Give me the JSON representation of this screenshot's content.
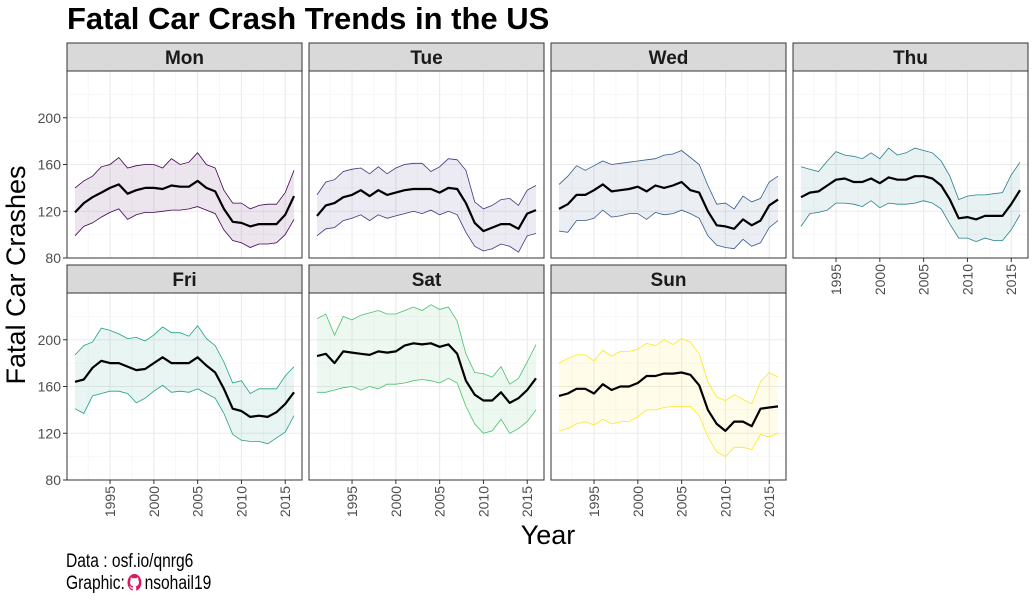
{
  "title": "Fatal Car Crash Trends in the US",
  "caption": {
    "data_label": "Data : ",
    "data_value": "osf.io/qnrg6",
    "graphic_label": "Graphic:",
    "graphic_value": "nsohail19",
    "github_icon_color": "#d81b60"
  },
  "chart_data": {
    "type": "area",
    "xlabel": "Year",
    "ylabel": "Fatal Car Crashes",
    "xlim": [
      1991,
      2016
    ],
    "ylim": [
      80,
      240
    ],
    "x_ticks": [
      1995,
      2000,
      2005,
      2010,
      2015
    ],
    "y_ticks": [
      80,
      120,
      160,
      200
    ],
    "grid": true,
    "legend": "none",
    "x": [
      1991,
      1992,
      1993,
      1994,
      1995,
      1996,
      1997,
      1998,
      1999,
      2000,
      2001,
      2002,
      2003,
      2004,
      2005,
      2006,
      2007,
      2008,
      2009,
      2010,
      2011,
      2012,
      2013,
      2014,
      2015,
      2016
    ],
    "panels": [
      {
        "day": "Mon",
        "color": "#440154",
        "mean": [
          119,
          127,
          132,
          136,
          140,
          143,
          135,
          138,
          140,
          140,
          139,
          142,
          141,
          141,
          146,
          140,
          137,
          122,
          111,
          110,
          107,
          109,
          109,
          109,
          117,
          133
        ],
        "upper": [
          140,
          146,
          150,
          158,
          160,
          166,
          157,
          159,
          160,
          160,
          157,
          165,
          160,
          162,
          170,
          160,
          157,
          138,
          127,
          127,
          122,
          125,
          126,
          126,
          136,
          155
        ],
        "lower": [
          99,
          107,
          110,
          115,
          119,
          122,
          113,
          117,
          119,
          119,
          120,
          121,
          121,
          122,
          124,
          121,
          118,
          104,
          95,
          93,
          89,
          92,
          92,
          93,
          100,
          113
        ]
      },
      {
        "day": "Tue",
        "color": "#46327e",
        "mean": [
          116,
          125,
          127,
          132,
          134,
          138,
          133,
          138,
          134,
          136,
          138,
          139,
          139,
          139,
          136,
          140,
          139,
          127,
          110,
          103,
          106,
          109,
          109,
          105,
          118,
          121
        ],
        "upper": [
          134,
          145,
          147,
          154,
          156,
          157,
          152,
          158,
          152,
          157,
          160,
          161,
          161,
          154,
          158,
          165,
          164,
          155,
          128,
          122,
          125,
          130,
          131,
          125,
          138,
          142
        ],
        "lower": [
          99,
          105,
          106,
          112,
          114,
          117,
          112,
          117,
          114,
          116,
          118,
          120,
          118,
          121,
          117,
          120,
          117,
          102,
          90,
          86,
          88,
          92,
          90,
          85,
          99,
          101
        ]
      },
      {
        "day": "Wed",
        "color": "#365c8d",
        "mean": [
          122,
          126,
          134,
          134,
          138,
          143,
          137,
          138,
          139,
          141,
          137,
          142,
          140,
          142,
          145,
          138,
          136,
          120,
          108,
          107,
          105,
          113,
          108,
          112,
          125,
          130
        ],
        "upper": [
          143,
          150,
          159,
          155,
          159,
          163,
          160,
          161,
          162,
          163,
          164,
          165,
          168,
          169,
          172,
          166,
          160,
          142,
          126,
          127,
          122,
          133,
          128,
          131,
          145,
          150
        ],
        "lower": [
          103,
          102,
          112,
          112,
          114,
          121,
          115,
          116,
          118,
          118,
          113,
          119,
          117,
          118,
          121,
          118,
          114,
          99,
          91,
          89,
          88,
          96,
          90,
          93,
          106,
          112
        ]
      },
      {
        "day": "Thu",
        "color": "#277f8e",
        "mean": [
          132,
          136,
          137,
          142,
          147,
          148,
          145,
          145,
          148,
          144,
          149,
          147,
          147,
          150,
          150,
          148,
          142,
          130,
          114,
          115,
          113,
          116,
          116,
          116,
          126,
          138
        ],
        "upper": [
          158,
          156,
          154,
          163,
          171,
          168,
          167,
          165,
          170,
          165,
          174,
          168,
          170,
          174,
          172,
          170,
          163,
          150,
          130,
          133,
          134,
          134,
          135,
          136,
          151,
          162
        ],
        "lower": [
          107,
          118,
          119,
          121,
          127,
          127,
          126,
          124,
          129,
          123,
          127,
          126,
          126,
          127,
          129,
          127,
          122,
          109,
          97,
          97,
          94,
          97,
          95,
          95,
          104,
          117
        ]
      },
      {
        "day": "Fri",
        "color": "#1fa187",
        "mean": [
          164,
          166,
          176,
          182,
          180,
          180,
          177,
          174,
          175,
          180,
          185,
          180,
          180,
          180,
          185,
          178,
          172,
          158,
          141,
          139,
          134,
          135,
          134,
          138,
          145,
          155
        ],
        "upper": [
          187,
          195,
          198,
          210,
          208,
          205,
          201,
          202,
          199,
          204,
          211,
          206,
          206,
          203,
          212,
          201,
          195,
          181,
          163,
          165,
          154,
          158,
          158,
          158,
          169,
          177
        ],
        "lower": [
          141,
          137,
          152,
          154,
          156,
          156,
          154,
          146,
          150,
          156,
          161,
          155,
          156,
          155,
          158,
          154,
          150,
          137,
          119,
          114,
          113,
          113,
          111,
          116,
          121,
          135
        ]
      },
      {
        "day": "Sat",
        "color": "#4ac16d",
        "mean": [
          186,
          188,
          180,
          190,
          189,
          188,
          187,
          190,
          189,
          190,
          195,
          197,
          196,
          197,
          194,
          196,
          188,
          165,
          153,
          148,
          148,
          155,
          146,
          150,
          157,
          167
        ],
        "upper": [
          218,
          222,
          204,
          220,
          217,
          221,
          223,
          225,
          222,
          222,
          225,
          228,
          225,
          230,
          226,
          228,
          216,
          188,
          172,
          171,
          168,
          177,
          162,
          167,
          181,
          196
        ],
        "lower": [
          155,
          155,
          157,
          159,
          160,
          157,
          160,
          158,
          162,
          162,
          163,
          165,
          166,
          165,
          163,
          167,
          163,
          143,
          128,
          120,
          122,
          132,
          120,
          124,
          130,
          140
        ]
      },
      {
        "day": "Sun",
        "color": "#fde725",
        "mean": [
          152,
          154,
          158,
          158,
          154,
          162,
          157,
          160,
          160,
          163,
          169,
          169,
          171,
          171,
          172,
          170,
          161,
          140,
          128,
          122,
          130,
          130,
          126,
          141,
          142,
          143
        ],
        "upper": [
          180,
          184,
          187,
          187,
          182,
          191,
          186,
          190,
          190,
          192,
          197,
          195,
          200,
          196,
          201,
          198,
          188,
          164,
          151,
          148,
          153,
          149,
          145,
          164,
          172,
          168
        ],
        "lower": [
          122,
          124,
          128,
          130,
          127,
          132,
          128,
          130,
          130,
          134,
          140,
          140,
          142,
          143,
          143,
          143,
          135,
          117,
          104,
          100,
          108,
          108,
          106,
          119,
          117,
          120
        ]
      }
    ]
  }
}
